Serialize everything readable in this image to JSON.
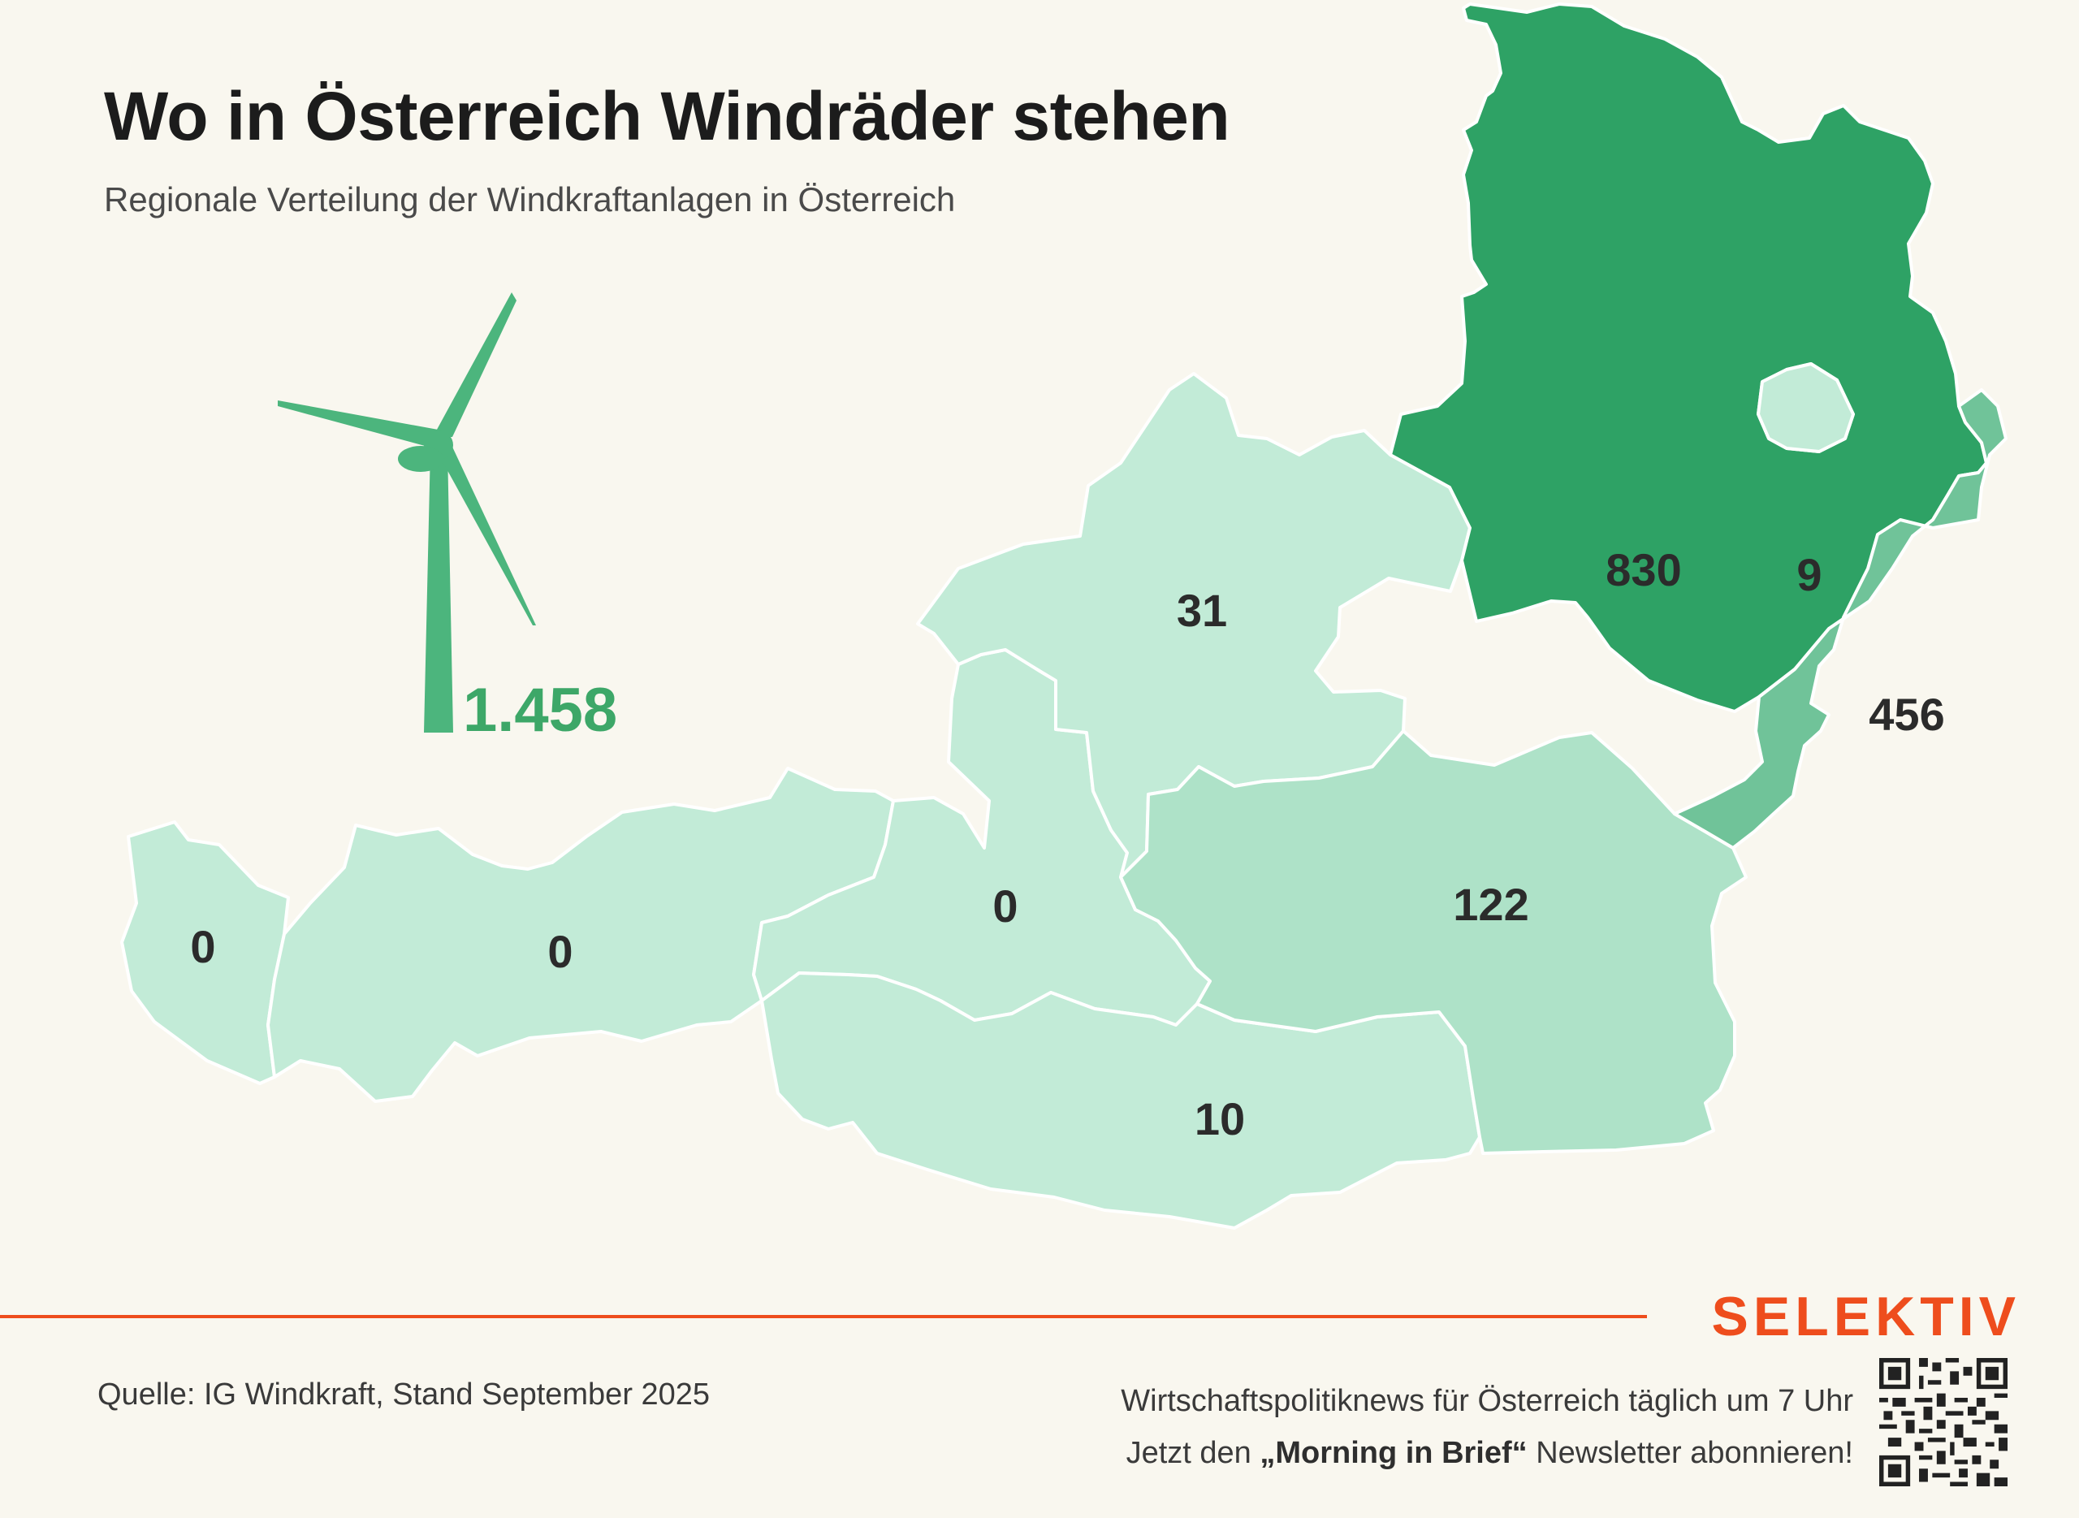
{
  "header": {
    "title": "Wo in Österreich Windräder stehen",
    "subtitle": "Regionale Verteilung der Windkraftanlagen in Österreich"
  },
  "map": {
    "total": "1.458",
    "colors": {
      "none": "#c2ebd7",
      "low": "#aee2c8",
      "mid": "#70c399",
      "high": "#2ea265",
      "turbine": "#4cb57d"
    },
    "regions": [
      {
        "name": "Vorarlberg",
        "value": 0,
        "label": "0"
      },
      {
        "name": "Tirol",
        "value": 0,
        "label": "0"
      },
      {
        "name": "Salzburg",
        "value": 0,
        "label": "0"
      },
      {
        "name": "Oberösterreich",
        "value": 31,
        "label": "31"
      },
      {
        "name": "Kärnten",
        "value": 10,
        "label": "10"
      },
      {
        "name": "Steiermark",
        "value": 122,
        "label": "122"
      },
      {
        "name": "Niederösterreich",
        "value": 830,
        "label": "830"
      },
      {
        "name": "Wien",
        "value": 9,
        "label": "9"
      },
      {
        "name": "Burgenland",
        "value": 456,
        "label": "456"
      }
    ]
  },
  "footer": {
    "brand": "SELEKTIV",
    "source": "Quelle: IG Windkraft, Stand September 2025",
    "promo_line1": "Wirtschaftspolitiknews für Österreich täglich um 7 Uhr",
    "promo_prefix": "Jetzt den ",
    "promo_bold": "„Morning in Brief“",
    "promo_suffix": " Newsletter abonnieren!"
  }
}
